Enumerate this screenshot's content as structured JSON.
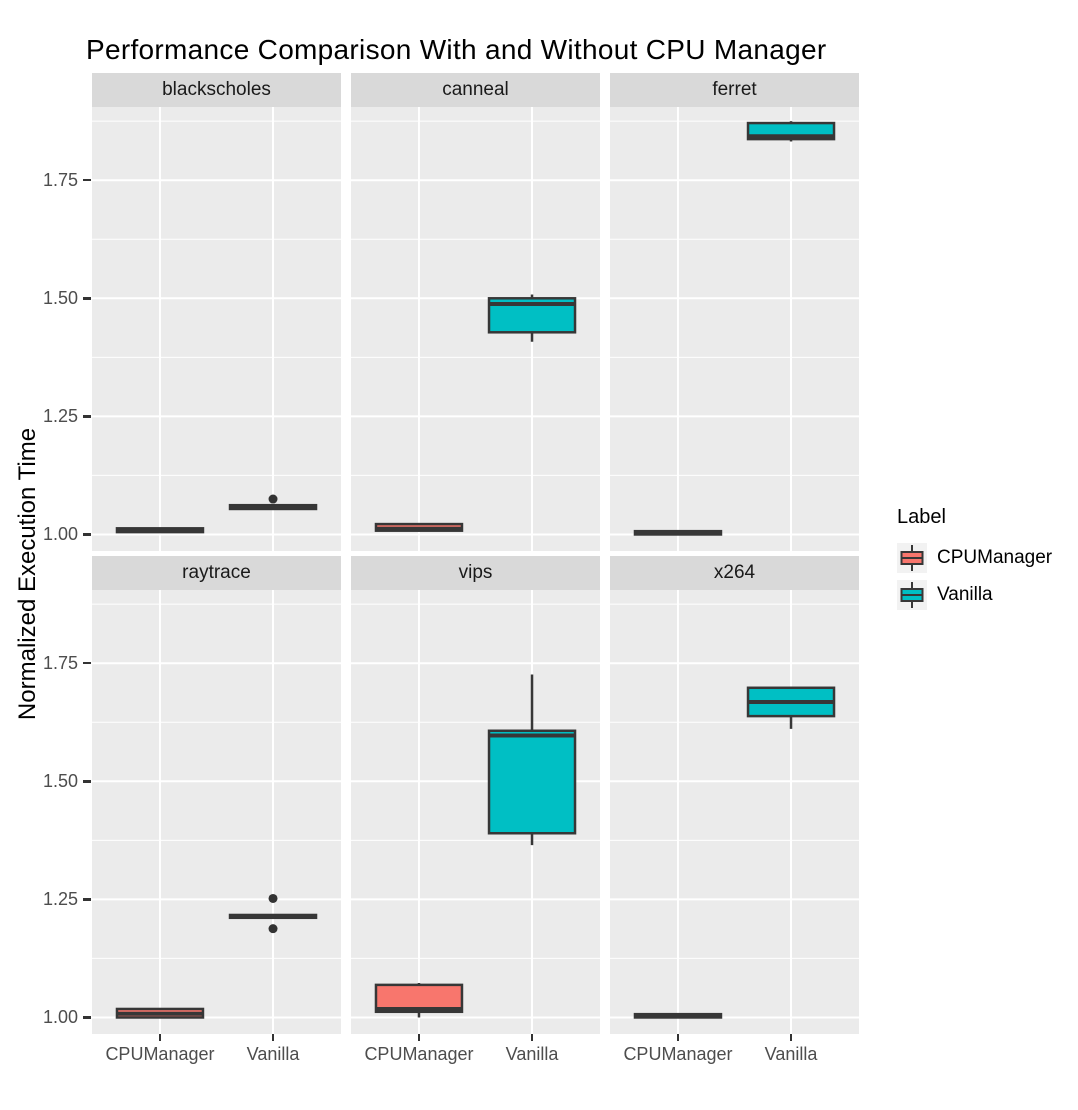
{
  "chart_data": {
    "type": "boxplot",
    "title": "Performance Comparison With and Without CPU Manager",
    "ylabel": "Normalized Execution Time",
    "xlabel": "",
    "categories": [
      "CPUManager",
      "Vanilla"
    ],
    "y_ticks": [
      1.0,
      1.25,
      1.5,
      1.75
    ],
    "y_tick_labels": [
      "1.00",
      "1.25",
      "1.50",
      "1.75"
    ],
    "y_minor_ticks": [
      1.125,
      1.375,
      1.625,
      1.875
    ],
    "y_domain": [
      0.965,
      1.905
    ],
    "grid": "on",
    "legend": {
      "title": "Label",
      "position": "right",
      "entries": [
        {
          "label": "CPUManager",
          "color": "#F8766D"
        },
        {
          "label": "Vanilla",
          "color": "#00BFC4"
        }
      ]
    },
    "facets": [
      {
        "name": "blackscholes",
        "row": 0,
        "col": 0,
        "boxes": [
          {
            "group": "CPUManager",
            "whisker_low": 1.004,
            "q1": 1.005,
            "median": 1.009,
            "q3": 1.013,
            "whisker_high": 1.014,
            "outliers": []
          },
          {
            "group": "Vanilla",
            "whisker_low": 1.053,
            "q1": 1.054,
            "median": 1.058,
            "q3": 1.062,
            "whisker_high": 1.063,
            "outliers": [
              1.075
            ]
          }
        ]
      },
      {
        "name": "canneal",
        "row": 0,
        "col": 1,
        "boxes": [
          {
            "group": "CPUManager",
            "whisker_low": 1.006,
            "q1": 1.008,
            "median": 1.012,
            "q3": 1.022,
            "whisker_high": 1.024,
            "outliers": []
          },
          {
            "group": "Vanilla",
            "whisker_low": 1.408,
            "q1": 1.428,
            "median": 1.488,
            "q3": 1.5,
            "whisker_high": 1.508,
            "outliers": []
          }
        ]
      },
      {
        "name": "ferret",
        "row": 0,
        "col": 2,
        "boxes": [
          {
            "group": "CPUManager",
            "whisker_low": 0.999,
            "q1": 1.0,
            "median": 1.003,
            "q3": 1.007,
            "whisker_high": 1.008,
            "outliers": []
          },
          {
            "group": "Vanilla",
            "whisker_low": 1.832,
            "q1": 1.837,
            "median": 1.843,
            "q3": 1.871,
            "whisker_high": 1.875,
            "outliers": []
          }
        ]
      },
      {
        "name": "raytrace",
        "row": 1,
        "col": 0,
        "boxes": [
          {
            "group": "CPUManager",
            "whisker_low": 0.999,
            "q1": 1.0,
            "median": 1.008,
            "q3": 1.018,
            "whisker_high": 1.02,
            "outliers": []
          },
          {
            "group": "Vanilla",
            "whisker_low": 1.21,
            "q1": 1.211,
            "median": 1.214,
            "q3": 1.217,
            "whisker_high": 1.218,
            "outliers": [
              1.252,
              1.188
            ]
          }
        ]
      },
      {
        "name": "vips",
        "row": 1,
        "col": 1,
        "boxes": [
          {
            "group": "CPUManager",
            "whisker_low": 1.0,
            "q1": 1.012,
            "median": 1.018,
            "q3": 1.069,
            "whisker_high": 1.073,
            "outliers": []
          },
          {
            "group": "Vanilla",
            "whisker_low": 1.365,
            "q1": 1.39,
            "median": 1.597,
            "q3": 1.607,
            "whisker_high": 1.726,
            "outliers": []
          }
        ]
      },
      {
        "name": "x264",
        "row": 1,
        "col": 2,
        "boxes": [
          {
            "group": "CPUManager",
            "whisker_low": 0.999,
            "q1": 1.0,
            "median": 1.003,
            "q3": 1.007,
            "whisker_high": 1.008,
            "outliers": []
          },
          {
            "group": "Vanilla",
            "whisker_low": 1.611,
            "q1": 1.638,
            "median": 1.668,
            "q3": 1.698,
            "whisker_high": 1.7,
            "outliers": []
          }
        ]
      }
    ],
    "colors": {
      "CPUManager": "#F8766D",
      "Vanilla": "#00BFC4",
      "box_border": "#373737",
      "outlier": "#333333",
      "panel_bg": "#EBEBEB",
      "strip_bg": "#D9D9D9",
      "grid": "#FFFFFF",
      "tick_text": "#4D4D4D",
      "legend_key_bg": "#F2F2F2"
    }
  }
}
